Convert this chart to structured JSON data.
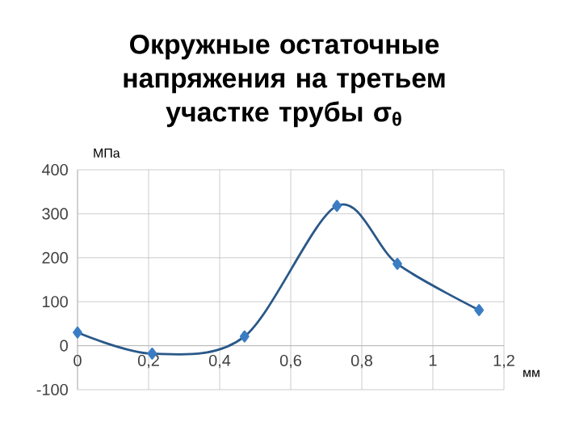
{
  "chart_data": {
    "type": "line",
    "title": "Окружные остаточные напряжения на третьем участке трубы σ$_{θ}$",
    "xlabel": "мм",
    "ylabel": "МПа",
    "x": [
      0,
      0.21,
      0.47,
      0.73,
      0.9,
      1.13
    ],
    "series": [
      {
        "color": "#3b7dc4",
        "values": [
          30,
          -18,
          21,
          318,
          186,
          81
        ]
      }
    ],
    "xlim": [
      0,
      1.2
    ],
    "ylim": [
      -100,
      400
    ],
    "xticks": [
      0,
      {
        "value": 0.2,
        "label": "0,2"
      },
      {
        "value": 0.4,
        "label": "0,4"
      },
      {
        "value": 0.6,
        "label": "0,6"
      },
      {
        "value": 0.8,
        "label": "0,8"
      },
      1,
      {
        "value": 1.2,
        "label": "1,2"
      }
    ],
    "yticks": [
      -100,
      0,
      100,
      200,
      300,
      400
    ],
    "grid": true,
    "marker": "diamond",
    "line_style": "solid"
  }
}
